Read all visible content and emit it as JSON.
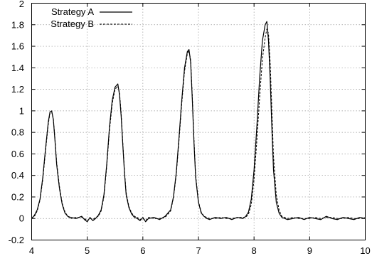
{
  "chart_data": {
    "type": "line",
    "title": "",
    "xlabel": "",
    "ylabel": "",
    "xlim": [
      4,
      10
    ],
    "ylim": [
      -0.2,
      2
    ],
    "xticks": [
      "4",
      "5",
      "6",
      "7",
      "8",
      "9",
      "10"
    ],
    "yticks": [
      "-0.2",
      "0",
      "0.2",
      "0.4",
      "0.6",
      "0.8",
      "1",
      "1.2",
      "1.4",
      "1.6",
      "1.8",
      "2"
    ],
    "grid": true,
    "legend_position": "top-left",
    "series": [
      {
        "name": "Strategy A",
        "style": "solid",
        "color": "#000000",
        "x": [
          4.0,
          4.05,
          4.1,
          4.15,
          4.2,
          4.25,
          4.3,
          4.33,
          4.36,
          4.39,
          4.42,
          4.45,
          4.5,
          4.55,
          4.6,
          4.65,
          4.7,
          4.8,
          4.9,
          4.95,
          5.0,
          5.05,
          5.1,
          5.15,
          5.2,
          5.25,
          5.3,
          5.35,
          5.4,
          5.45,
          5.5,
          5.55,
          5.58,
          5.61,
          5.64,
          5.67,
          5.7,
          5.75,
          5.8,
          5.85,
          5.9,
          5.95,
          6.0,
          6.05,
          6.1,
          6.2,
          6.3,
          6.4,
          6.5,
          6.55,
          6.6,
          6.65,
          6.7,
          6.75,
          6.8,
          6.83,
          6.86,
          6.89,
          6.92,
          6.95,
          7.0,
          7.05,
          7.1,
          7.15,
          7.2,
          7.3,
          7.4,
          7.5,
          7.6,
          7.7,
          7.8,
          7.85,
          7.9,
          7.95,
          8.0,
          8.05,
          8.1,
          8.15,
          8.2,
          8.23,
          8.26,
          8.29,
          8.32,
          8.35,
          8.4,
          8.45,
          8.5,
          8.55,
          8.6,
          8.7,
          8.8,
          8.9,
          9.0,
          9.1,
          9.2,
          9.3,
          9.4,
          9.5,
          9.6,
          9.7,
          9.8,
          9.9,
          10.0
        ],
        "y": [
          0.0,
          0.03,
          0.08,
          0.18,
          0.38,
          0.65,
          0.9,
          0.99,
          1.0,
          0.92,
          0.72,
          0.5,
          0.28,
          0.13,
          0.05,
          0.02,
          0.01,
          0.0,
          0.02,
          -0.01,
          -0.03,
          0.01,
          -0.02,
          0.0,
          0.03,
          0.08,
          0.22,
          0.5,
          0.85,
          1.1,
          1.22,
          1.25,
          1.15,
          0.95,
          0.68,
          0.42,
          0.22,
          0.1,
          0.04,
          0.01,
          0.0,
          -0.02,
          0.01,
          -0.03,
          0.0,
          0.01,
          -0.01,
          0.02,
          0.08,
          0.2,
          0.42,
          0.75,
          1.1,
          1.4,
          1.55,
          1.57,
          1.45,
          1.1,
          0.7,
          0.38,
          0.15,
          0.05,
          0.02,
          0.0,
          -0.01,
          0.01,
          0.0,
          0.01,
          -0.01,
          0.01,
          0.0,
          0.02,
          0.06,
          0.18,
          0.45,
          0.85,
          1.3,
          1.65,
          1.8,
          1.83,
          1.65,
          1.3,
          0.85,
          0.45,
          0.15,
          0.05,
          0.01,
          0.0,
          -0.01,
          0.0,
          0.01,
          -0.01,
          0.01,
          0.0,
          -0.01,
          0.02,
          0.0,
          -0.01,
          0.01,
          0.0,
          -0.01,
          0.01,
          0.0
        ]
      },
      {
        "name": "Strategy B",
        "style": "dashed",
        "color": "#000000",
        "x": [
          4.0,
          4.05,
          4.1,
          4.15,
          4.2,
          4.25,
          4.3,
          4.33,
          4.36,
          4.39,
          4.42,
          4.45,
          4.5,
          4.55,
          4.6,
          4.65,
          4.7,
          4.8,
          4.9,
          4.95,
          5.0,
          5.05,
          5.1,
          5.15,
          5.2,
          5.25,
          5.3,
          5.35,
          5.4,
          5.45,
          5.5,
          5.55,
          5.58,
          5.61,
          5.64,
          5.67,
          5.7,
          5.75,
          5.8,
          5.85,
          5.9,
          5.95,
          6.0,
          6.05,
          6.1,
          6.2,
          6.3,
          6.4,
          6.5,
          6.55,
          6.6,
          6.65,
          6.7,
          6.75,
          6.8,
          6.83,
          6.86,
          6.89,
          6.92,
          6.95,
          7.0,
          7.05,
          7.1,
          7.15,
          7.2,
          7.3,
          7.4,
          7.5,
          7.6,
          7.7,
          7.8,
          7.85,
          7.9,
          7.95,
          8.0,
          8.05,
          8.1,
          8.15,
          8.2,
          8.23,
          8.26,
          8.29,
          8.32,
          8.35,
          8.4,
          8.45,
          8.5,
          8.55,
          8.6,
          8.7,
          8.8,
          8.9,
          9.0,
          9.1,
          9.2,
          9.3,
          9.4,
          9.5,
          9.6,
          9.7,
          9.8,
          9.9,
          10.0
        ],
        "y": [
          0.0,
          0.02,
          0.07,
          0.17,
          0.36,
          0.63,
          0.88,
          0.98,
          0.99,
          0.93,
          0.74,
          0.52,
          0.3,
          0.14,
          0.06,
          0.02,
          0.0,
          0.01,
          0.01,
          0.0,
          -0.02,
          0.0,
          -0.01,
          0.01,
          0.02,
          0.07,
          0.2,
          0.48,
          0.82,
          1.07,
          1.2,
          1.23,
          1.17,
          0.98,
          0.7,
          0.44,
          0.24,
          0.11,
          0.05,
          0.02,
          0.01,
          -0.01,
          0.0,
          -0.02,
          0.01,
          0.0,
          0.0,
          0.01,
          0.07,
          0.19,
          0.4,
          0.72,
          1.07,
          1.37,
          1.53,
          1.56,
          1.47,
          1.13,
          0.73,
          0.4,
          0.16,
          0.06,
          0.02,
          0.01,
          0.0,
          0.0,
          0.01,
          0.0,
          0.0,
          0.01,
          0.01,
          0.01,
          0.04,
          0.13,
          0.36,
          0.72,
          1.12,
          1.48,
          1.68,
          1.76,
          1.72,
          1.45,
          1.02,
          0.58,
          0.22,
          0.08,
          0.02,
          0.01,
          0.0,
          0.01,
          0.0,
          0.0,
          0.0,
          0.01,
          0.0,
          0.01,
          0.01,
          0.0,
          0.0,
          0.01,
          0.0,
          0.0,
          0.01
        ]
      }
    ]
  }
}
